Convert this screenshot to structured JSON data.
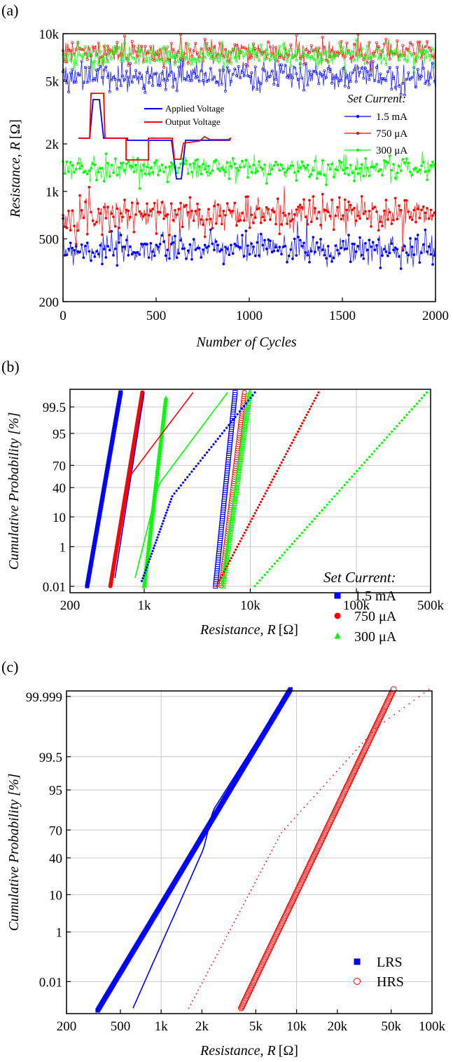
{
  "chart_data": [
    {
      "panel_label": "(a)",
      "type": "line",
      "xlabel": "Number of Cycles",
      "ylabel_italic": "Resistance, R",
      "ylabel_unit": "[Ω]",
      "xlim": [
        0,
        2000
      ],
      "ylim": [
        200,
        10000
      ],
      "yscale": "log",
      "x_ticks": [
        0,
        500,
        1000,
        1500,
        2000
      ],
      "x_tick_labels": [
        "0",
        "500",
        "1000",
        "1500",
        "2000"
      ],
      "y_ticks": [
        200,
        500,
        1000,
        2000,
        5000,
        10000
      ],
      "y_tick_labels": [
        "200",
        "500",
        "1k",
        "2k",
        "5k",
        "10k"
      ],
      "grid": false,
      "legend_title": "Set Current:",
      "legend_position": "right",
      "series": [
        {
          "name": "1.5 mA",
          "color": "#0000ff",
          "state": "LRS",
          "level": 430,
          "spread": 0.05
        },
        {
          "name": "750 μA",
          "color": "#ff0000",
          "state": "LRS",
          "level": 720,
          "spread": 0.055
        },
        {
          "name": "300 μA",
          "color": "#00ff00",
          "state": "LRS",
          "level": 1400,
          "spread": 0.04
        },
        {
          "name": "1.5 mA",
          "color": "#0000ff",
          "state": "HRS",
          "level": 5400,
          "spread": 0.045
        },
        {
          "name": "750 μA",
          "color": "#ff0000",
          "state": "HRS",
          "level": 7600,
          "spread": 0.04
        },
        {
          "name": "300 μA",
          "color": "#00ff00",
          "state": "HRS",
          "level": 7300,
          "spread": 0.035
        }
      ],
      "inset": {
        "legend": [
          {
            "name": "Applied Voltage",
            "color": "#0000ff"
          },
          {
            "name": "Output Voltage",
            "color": "#ff0000"
          }
        ]
      }
    },
    {
      "panel_label": "(b)",
      "type": "scatter",
      "xlabel_italic": "Resistance, R",
      "xlabel_unit": "[Ω]",
      "ylabel": "Cumulative Probability [%]",
      "xscale": "log",
      "xlim": [
        200,
        500000
      ],
      "x_ticks": [
        200,
        1000,
        10000,
        100000,
        500000
      ],
      "x_tick_labels": [
        "200",
        "1k",
        "10k",
        "100k",
        "500k"
      ],
      "y_tick_labels": [
        "0.01",
        "1",
        "10",
        "40",
        "70",
        "95",
        "99.5"
      ],
      "y_ticks_pct": [
        0.01,
        1,
        10,
        40,
        70,
        95,
        99.5
      ],
      "grid": true,
      "legend_title": "Set Current:",
      "legend_position": "bottom-right",
      "series": [
        {
          "name": "1.5 mA",
          "color": "#0000ff",
          "marker": "square",
          "LRS_range": [
            290,
            600
          ],
          "HRS_range": [
            4700,
            7200
          ],
          "wide_range": [
            950,
            11000
          ]
        },
        {
          "name": "750 μA",
          "color": "#ff0000",
          "marker": "circle",
          "LRS_range": [
            480,
            960
          ],
          "HRS_range": [
            5300,
            8800
          ],
          "wide_range": [
            4800,
            44000
          ]
        },
        {
          "name": "300 μA",
          "color": "#00ff00",
          "marker": "triangle",
          "LRS_range": [
            1000,
            1600
          ],
          "HRS_range": [
            5500,
            9900
          ],
          "wide_range": [
            11000,
            460000
          ]
        }
      ]
    },
    {
      "panel_label": "(c)",
      "type": "scatter",
      "xlabel_italic": "Resistance, R",
      "xlabel_unit": "[Ω]",
      "ylabel": "Cumulative Probability [%]",
      "xscale": "log",
      "xlim": [
        200,
        100000
      ],
      "x_ticks": [
        200,
        500,
        1000,
        2000,
        5000,
        10000,
        20000,
        50000,
        100000
      ],
      "x_tick_labels": [
        "200",
        "500",
        "1k",
        "2k",
        "5k",
        "10k",
        "20k",
        "50k",
        "100k"
      ],
      "y_tick_labels": [
        "0.01",
        "1",
        "10",
        "40",
        "70",
        "95",
        "99.5",
        "99.999"
      ],
      "y_ticks_pct": [
        0.01,
        1,
        10,
        40,
        70,
        95,
        99.5,
        99.999
      ],
      "grid": true,
      "legend_position": "bottom-right",
      "series": [
        {
          "name": "LRS",
          "color": "#0000ff",
          "marker": "square",
          "range": [
            340,
            9000
          ]
        },
        {
          "name": "HRS",
          "color": "#ff0000",
          "marker": "circle-open",
          "range": [
            3900,
            52000
          ]
        }
      ]
    }
  ]
}
